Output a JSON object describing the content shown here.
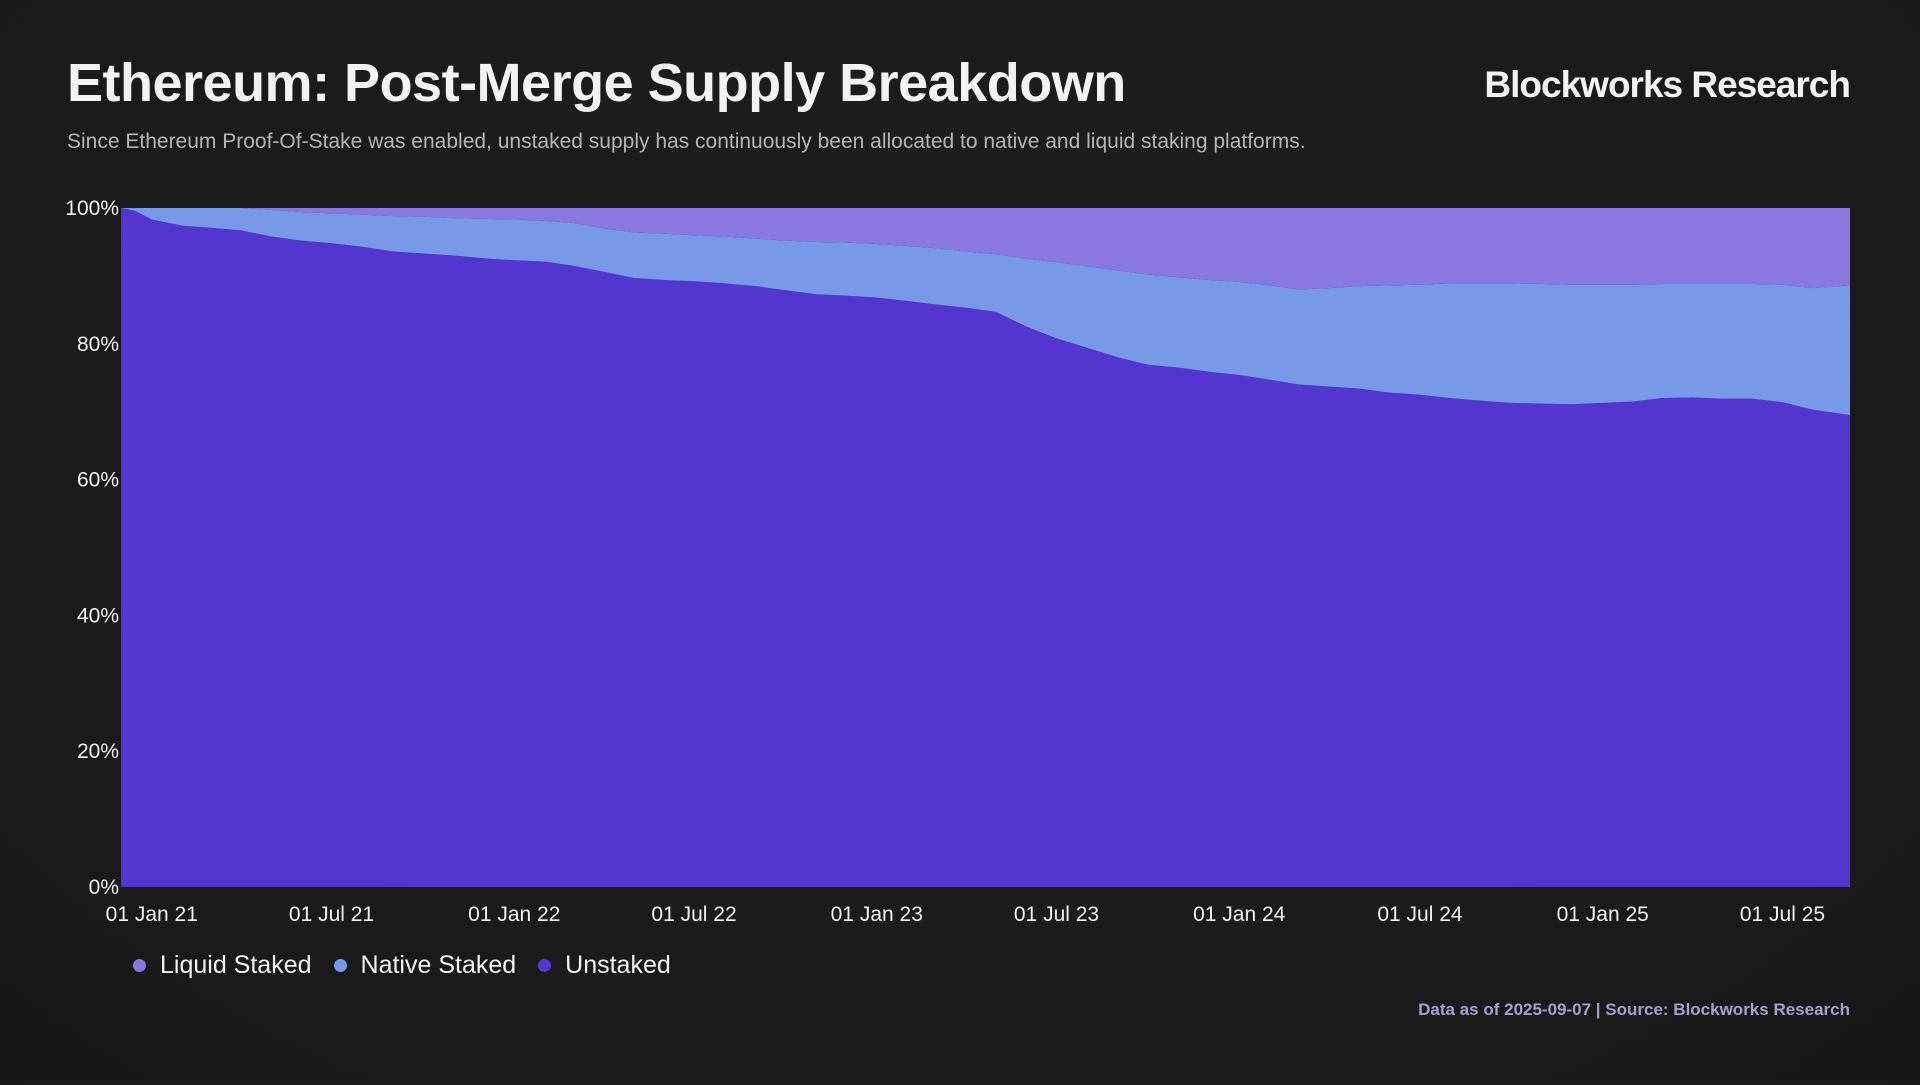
{
  "header": {
    "title": "Ethereum: Post-Merge Supply Breakdown",
    "subtitle": "Since Ethereum Proof-Of-Stake was enabled, unstaked supply has continuously been allocated to native and liquid staking platforms.",
    "brand": "Blockworks Research"
  },
  "footer": {
    "note": "Data as of 2025-09-07 | Source: Blockworks Research"
  },
  "colors": {
    "liquid": "#8b77e0",
    "native": "#7799e8",
    "unstaked": "#5236cf"
  },
  "chart_data": {
    "type": "area",
    "stacked": true,
    "normalized": true,
    "x": [
      "2020-12-01",
      "2020-12-15",
      "2021-01-01",
      "2021-02-01",
      "2021-03-01",
      "2021-04-01",
      "2021-05-01",
      "2021-06-01",
      "2021-07-01",
      "2021-08-01",
      "2021-09-01",
      "2021-10-01",
      "2021-11-01",
      "2021-12-01",
      "2022-01-01",
      "2022-02-01",
      "2022-03-01",
      "2022-04-01",
      "2022-05-01",
      "2022-06-01",
      "2022-07-01",
      "2022-08-01",
      "2022-09-01",
      "2022-10-01",
      "2022-11-01",
      "2022-12-01",
      "2023-01-01",
      "2023-02-01",
      "2023-03-01",
      "2023-04-01",
      "2023-05-01",
      "2023-06-01",
      "2023-07-01",
      "2023-08-01",
      "2023-09-01",
      "2023-10-01",
      "2023-11-01",
      "2023-12-01",
      "2024-01-01",
      "2024-02-01",
      "2024-03-01",
      "2024-04-01",
      "2024-05-01",
      "2024-06-01",
      "2024-07-01",
      "2024-08-01",
      "2024-09-01",
      "2024-10-01",
      "2024-11-01",
      "2024-12-01",
      "2025-01-01",
      "2025-02-01",
      "2025-03-01",
      "2025-04-01",
      "2025-05-01",
      "2025-06-01",
      "2025-07-01",
      "2025-08-01",
      "2025-09-07"
    ],
    "series": [
      {
        "name": "Liquid Staked",
        "values": [
          0.0,
          0.0,
          0.0,
          0.0,
          0.0,
          0.0,
          0.3,
          0.6,
          0.8,
          1.0,
          1.2,
          1.3,
          1.5,
          1.6,
          1.7,
          1.9,
          2.2,
          3.0,
          3.6,
          3.8,
          4.0,
          4.2,
          4.5,
          4.8,
          5.0,
          5.1,
          5.3,
          5.6,
          5.9,
          6.4,
          6.8,
          7.5,
          8.0,
          8.6,
          9.2,
          9.8,
          10.2,
          10.6,
          10.9,
          11.4,
          12.0,
          11.8,
          11.5,
          11.4,
          11.3,
          11.1,
          11.1,
          11.1,
          11.2,
          11.3,
          11.3,
          11.3,
          11.2,
          11.2,
          11.2,
          11.2,
          11.3,
          11.8,
          11.4
        ]
      },
      {
        "name": "Native Staked",
        "values": [
          0.0,
          0.4,
          1.7,
          2.6,
          2.9,
          3.3,
          3.9,
          4.2,
          4.4,
          4.7,
          5.2,
          5.4,
          5.5,
          5.8,
          6.0,
          6.0,
          6.3,
          6.4,
          6.7,
          6.8,
          6.8,
          6.9,
          7.0,
          7.3,
          7.7,
          7.8,
          7.9,
          8.1,
          8.3,
          8.3,
          8.5,
          10.0,
          11.2,
          12.0,
          12.8,
          13.3,
          13.3,
          13.5,
          13.7,
          13.9,
          14.0,
          14.5,
          15.1,
          15.8,
          16.2,
          16.9,
          17.3,
          17.6,
          17.6,
          17.6,
          17.4,
          17.2,
          16.8,
          16.7,
          16.9,
          16.9,
          17.3,
          17.9,
          19.1
        ]
      },
      {
        "name": "Unstaked",
        "values": [
          100.0,
          99.6,
          98.3,
          97.4,
          97.1,
          96.7,
          95.8,
          95.2,
          94.8,
          94.3,
          93.6,
          93.3,
          93.0,
          92.6,
          92.3,
          92.1,
          91.5,
          90.6,
          89.7,
          89.4,
          89.2,
          88.9,
          88.5,
          87.9,
          87.3,
          87.1,
          86.8,
          86.3,
          85.8,
          85.3,
          84.7,
          82.5,
          80.8,
          79.4,
          78.0,
          76.9,
          76.5,
          75.9,
          75.4,
          74.7,
          74.0,
          73.7,
          73.4,
          72.8,
          72.5,
          72.0,
          71.6,
          71.3,
          71.2,
          71.1,
          71.3,
          71.5,
          72.0,
          72.1,
          71.9,
          71.9,
          71.4,
          70.3,
          69.5
        ]
      }
    ],
    "ylim": [
      0,
      100
    ],
    "yticks": [
      "0%",
      "20%",
      "40%",
      "60%",
      "80%",
      "100%"
    ],
    "xticks": [
      {
        "date": "2021-01-01",
        "label": "01 Jan 21"
      },
      {
        "date": "2021-07-01",
        "label": "01 Jul 21"
      },
      {
        "date": "2022-01-01",
        "label": "01 Jan 22"
      },
      {
        "date": "2022-07-01",
        "label": "01 Jul 22"
      },
      {
        "date": "2023-01-01",
        "label": "01 Jan 23"
      },
      {
        "date": "2023-07-01",
        "label": "01 Jul 23"
      },
      {
        "date": "2024-01-01",
        "label": "01 Jan 24"
      },
      {
        "date": "2024-07-01",
        "label": "01 Jul 24"
      },
      {
        "date": "2025-01-01",
        "label": "01 Jan 25"
      },
      {
        "date": "2025-07-01",
        "label": "01 Jul 25"
      }
    ],
    "legend": {
      "position": "bottom-left",
      "items": [
        {
          "label": "Liquid Staked",
          "color": "#8b77e0"
        },
        {
          "label": "Native Staked",
          "color": "#7799e8"
        },
        {
          "label": "Unstaked",
          "color": "#5236cf"
        }
      ]
    },
    "grid": false
  }
}
